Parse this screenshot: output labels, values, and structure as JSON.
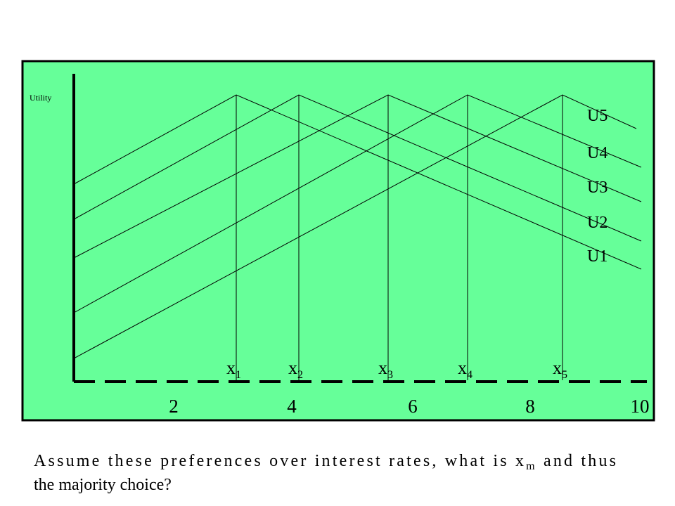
{
  "axis_label": "Utility",
  "curves": [
    "U5",
    "U4",
    "U3",
    "U2",
    "U1"
  ],
  "points": [
    {
      "label": "x",
      "subscript": "1"
    },
    {
      "label": "x",
      "subscript": "2"
    },
    {
      "label": "x",
      "subscript": "3"
    },
    {
      "label": "x",
      "subscript": "4"
    },
    {
      "label": "x",
      "subscript": "5"
    }
  ],
  "x_ticks": [
    "2",
    "4",
    "6",
    "8",
    "10"
  ],
  "caption": {
    "line1_before": "Assume these preferences over interest rates, what is x",
    "subscript": "m",
    "line1_after": " and thus",
    "line2": "the majority choice?"
  }
}
